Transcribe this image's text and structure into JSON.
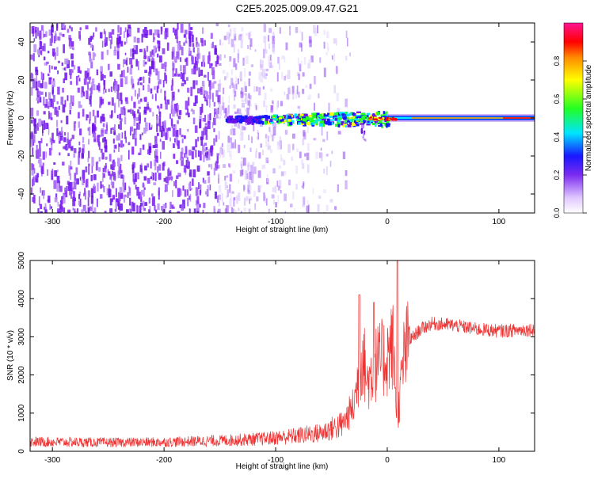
{
  "title": "C2E5.2025.009.09.47.G21",
  "chart_data": [
    {
      "type": "heatmap",
      "xlabel": "Height of straight line (km)",
      "ylabel": "Frequency (Hz)",
      "xlim": [
        -320,
        132
      ],
      "ylim": [
        -50,
        50
      ],
      "xticks": [
        -300,
        -200,
        -100,
        0,
        100
      ],
      "yticks": [
        -40,
        -20,
        0,
        20,
        40
      ],
      "colorbar": {
        "label": "Normalized spectral amplitude",
        "range": [
          0,
          1
        ],
        "ticks": [
          0.0,
          0.2,
          0.4,
          0.6,
          0.8
        ]
      },
      "features": {
        "noise_region_x": [
          -320,
          -40
        ],
        "signal_center_frequency": 0,
        "signal_starts_x": -145,
        "peak_x": 0
      }
    },
    {
      "type": "line",
      "xlabel": "Height of straight line (km)",
      "ylabel": "SNR (10 * v/v)",
      "xlim": [
        -320,
        132
      ],
      "ylim": [
        0,
        5000
      ],
      "xticks": [
        -300,
        -200,
        -100,
        0,
        100
      ],
      "yticks": [
        0,
        1000,
        2000,
        3000,
        4000,
        5000
      ],
      "color": "#ee3333",
      "series": [
        {
          "x": [
            -320,
            -250,
            -200,
            -150,
            -110,
            -90,
            -60,
            -40,
            -30,
            -22,
            -18,
            -10,
            0,
            5,
            9,
            15,
            20,
            30,
            40,
            60,
            80,
            100,
            132
          ],
          "y": [
            250,
            230,
            240,
            280,
            330,
            380,
            480,
            700,
            1200,
            2600,
            1800,
            2300,
            2500,
            2800,
            800,
            2500,
            2900,
            3200,
            3350,
            3300,
            3200,
            3150,
            3200
          ]
        }
      ],
      "spikes": [
        {
          "x": -25,
          "y": 4100
        },
        {
          "x": 9,
          "y": 5000
        },
        {
          "x": -12,
          "y": 3900
        }
      ]
    }
  ]
}
